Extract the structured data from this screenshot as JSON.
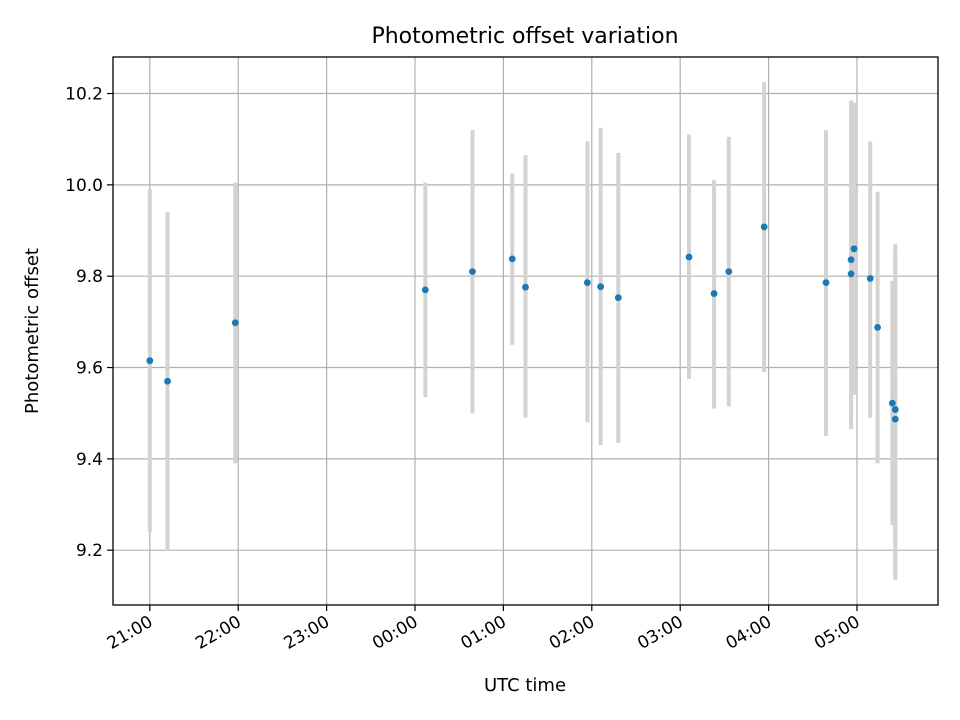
{
  "chart_data": {
    "type": "scatter",
    "title": "Photometric offset variation",
    "xlabel": "UTC time",
    "ylabel": "Photometric offset",
    "xlim": [
      "20:35",
      "05:55"
    ],
    "ylim": [
      9.08,
      10.28
    ],
    "x_ticks": [
      "21:00",
      "22:00",
      "23:00",
      "00:00",
      "01:00",
      "02:00",
      "03:00",
      "04:00",
      "05:00"
    ],
    "y_ticks": [
      9.2,
      9.4,
      9.6,
      9.8,
      10.0,
      10.2
    ],
    "grid": true,
    "marker_color": "#1f77b4",
    "errorbar_color": "#d3d3d3",
    "points": [
      {
        "time": "21:00",
        "y": 9.615,
        "lo": 9.24,
        "hi": 9.99
      },
      {
        "time": "21:12",
        "y": 9.57,
        "lo": 9.2,
        "hi": 9.94
      },
      {
        "time": "21:58",
        "y": 9.698,
        "lo": 9.39,
        "hi": 10.005
      },
      {
        "time": "00:07",
        "y": 9.77,
        "lo": 9.535,
        "hi": 10.005
      },
      {
        "time": "00:39",
        "y": 9.81,
        "lo": 9.5,
        "hi": 10.12
      },
      {
        "time": "01:06",
        "y": 9.838,
        "lo": 9.65,
        "hi": 10.025
      },
      {
        "time": "01:15",
        "y": 9.776,
        "lo": 9.49,
        "hi": 10.065
      },
      {
        "time": "01:57",
        "y": 9.786,
        "lo": 9.48,
        "hi": 10.095
      },
      {
        "time": "02:06",
        "y": 9.777,
        "lo": 9.43,
        "hi": 10.125
      },
      {
        "time": "02:18",
        "y": 9.753,
        "lo": 9.435,
        "hi": 10.07
      },
      {
        "time": "03:06",
        "y": 9.842,
        "lo": 9.575,
        "hi": 10.11
      },
      {
        "time": "03:23",
        "y": 9.762,
        "lo": 9.51,
        "hi": 10.01
      },
      {
        "time": "03:33",
        "y": 9.81,
        "lo": 9.515,
        "hi": 10.105
      },
      {
        "time": "03:57",
        "y": 9.908,
        "lo": 9.59,
        "hi": 10.225
      },
      {
        "time": "04:39",
        "y": 9.786,
        "lo": 9.45,
        "hi": 10.12
      },
      {
        "time": "04:56",
        "y": 9.805,
        "lo": 9.465,
        "hi": 10.145
      },
      {
        "time": "04:56",
        "y": 9.836,
        "lo": 9.49,
        "hi": 10.185
      },
      {
        "time": "04:58",
        "y": 9.86,
        "lo": 9.54,
        "hi": 10.18
      },
      {
        "time": "05:09",
        "y": 9.795,
        "lo": 9.49,
        "hi": 10.095
      },
      {
        "time": "05:14",
        "y": 9.688,
        "lo": 9.39,
        "hi": 9.985
      },
      {
        "time": "05:24",
        "y": 9.522,
        "lo": 9.255,
        "hi": 9.79
      },
      {
        "time": "05:26",
        "y": 9.508,
        "lo": 9.145,
        "hi": 9.87
      },
      {
        "time": "05:26",
        "y": 9.487,
        "lo": 9.135,
        "hi": 9.84
      }
    ]
  }
}
